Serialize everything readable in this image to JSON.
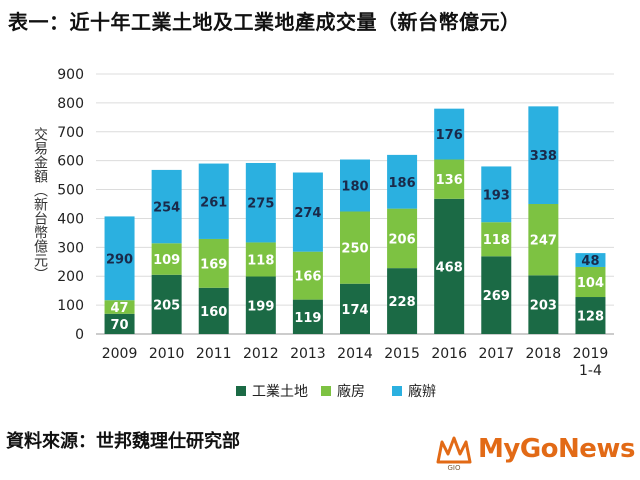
{
  "title": "表一：近十年工業土地及工業地產成交量（新台幣億元）",
  "source": "資料來源：世邦魏理仕研究部",
  "logo": {
    "text": "MyGoNews",
    "icon_text": "GIO"
  },
  "colors": {
    "industrial_land": "#1b6a45",
    "factory": "#7dc242",
    "office": "#2bb0e0"
  },
  "chart_data": {
    "type": "bar",
    "stacked": true,
    "title": "表一：近十年工業土地及工業地產成交量（新台幣億元）",
    "xlabel": "",
    "ylabel": "交易金額（新台幣億元）",
    "ylim": [
      0,
      900
    ],
    "yticks": [
      0,
      100,
      200,
      300,
      400,
      500,
      600,
      700,
      800,
      900
    ],
    "grid": true,
    "legend_position": "bottom",
    "categories": [
      "2009",
      "2010",
      "2011",
      "2012",
      "2013",
      "2014",
      "2015",
      "2016",
      "2017",
      "2018",
      "2019\n1-4"
    ],
    "series": [
      {
        "name": "工業土地",
        "values": [
          70,
          205,
          160,
          199,
          119,
          174,
          228,
          468,
          269,
          203,
          128
        ]
      },
      {
        "name": "廠房",
        "values": [
          47,
          109,
          169,
          118,
          166,
          250,
          206,
          136,
          118,
          247,
          104
        ]
      },
      {
        "name": "廠辦",
        "values": [
          290,
          254,
          261,
          275,
          274,
          180,
          186,
          176,
          193,
          338,
          48
        ]
      }
    ]
  }
}
